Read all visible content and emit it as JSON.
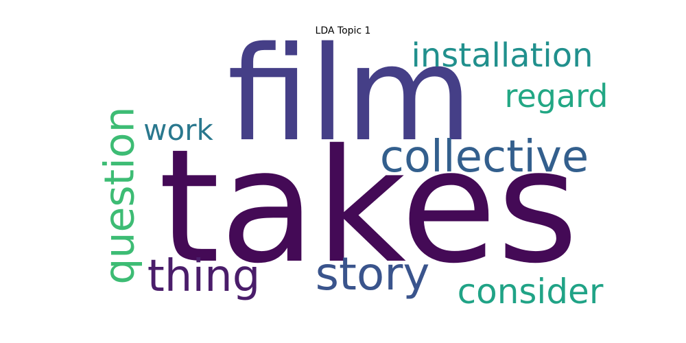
{
  "chart_data": {
    "type": "wordcloud",
    "title": "LDA Topic 1",
    "colormap": "viridis",
    "background": "#ffffff",
    "words": [
      {
        "text": "takes",
        "weight": 1.0,
        "color": "#440a56"
      },
      {
        "text": "film",
        "weight": 0.72,
        "color": "#453f87"
      },
      {
        "text": "collective",
        "weight": 0.32,
        "color": "#335f8d"
      },
      {
        "text": "story",
        "weight": 0.3,
        "color": "#3a548c"
      },
      {
        "text": "thing",
        "weight": 0.28,
        "color": "#4a1d6a"
      },
      {
        "text": "question",
        "weight": 0.28,
        "color": "#3dbc74"
      },
      {
        "text": "consider",
        "weight": 0.26,
        "color": "#20a386"
      },
      {
        "text": "installation",
        "weight": 0.24,
        "color": "#21908d"
      },
      {
        "text": "regard",
        "weight": 0.22,
        "color": "#22a784"
      },
      {
        "text": "work",
        "weight": 0.2,
        "color": "#2a788e"
      }
    ]
  }
}
